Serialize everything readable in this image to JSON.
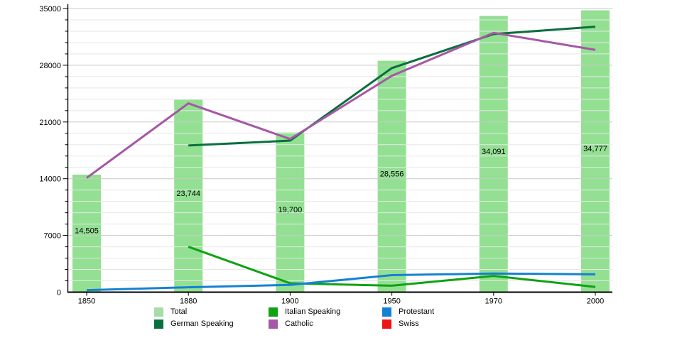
{
  "chart_data": {
    "type": "bar+line combo",
    "title": "",
    "xlabel": "",
    "ylabel": "",
    "categories": [
      "1850",
      "1880",
      "1900",
      "1950",
      "1970",
      "2000"
    ],
    "ylim": [
      0,
      35000
    ],
    "y_ticks": [
      0,
      7000,
      14000,
      21000,
      28000,
      35000
    ],
    "y_tick_labels": [
      "0",
      "7000",
      "14000",
      "21000",
      "28000",
      "35000"
    ],
    "y_minor_step": 1400,
    "grid": "horizontal minor lines every 1400, darker line at each labeled tick",
    "legend_position": "bottom",
    "bar_series": {
      "name": "Total",
      "color": "#93e093",
      "values": [
        14505,
        23744,
        19700,
        28556,
        34091,
        34777
      ],
      "labels": [
        "14,505",
        "23,744",
        "19,700",
        "28,556",
        "34,091",
        "34,777"
      ]
    },
    "line_series": [
      {
        "name": "German Speaking",
        "color": "#0a6f3e",
        "values": [
          null,
          18100,
          18700,
          27650,
          31850,
          32750
        ]
      },
      {
        "name": "Italian Speaking",
        "color": "#10a212",
        "values": [
          null,
          5600,
          1100,
          800,
          2000,
          650
        ]
      },
      {
        "name": "Catholic",
        "color": "#a558a5",
        "values": [
          14100,
          23300,
          18900,
          26700,
          32000,
          29900
        ]
      },
      {
        "name": "Protestant",
        "color": "#1581d2",
        "values": [
          250,
          600,
          900,
          2100,
          2300,
          2200
        ]
      },
      {
        "name": "Swiss",
        "color": "#ee1118",
        "values": [
          null,
          null,
          null,
          null,
          null,
          null
        ],
        "note": "legend entry only; no line visible on the plot"
      }
    ]
  },
  "legend": {
    "items": [
      {
        "id": "total",
        "label": "Total",
        "color": "#a7dca7"
      },
      {
        "id": "german-speaking",
        "label": "German Speaking",
        "color": "#0a6f3e"
      },
      {
        "id": "italian-speaking",
        "label": "Italian Speaking",
        "color": "#10a212"
      },
      {
        "id": "catholic",
        "label": "Catholic",
        "color": "#a558a5"
      },
      {
        "id": "protestant",
        "label": "Protestant",
        "color": "#1581d2"
      },
      {
        "id": "swiss",
        "label": "Swiss",
        "color": "#ee1118"
      }
    ]
  },
  "colors": {
    "axis": "#000000",
    "minor_grid": "#e7e7e7",
    "major_grid": "#c9c9c9",
    "label_text": "#000000",
    "background": "#ffffff"
  }
}
